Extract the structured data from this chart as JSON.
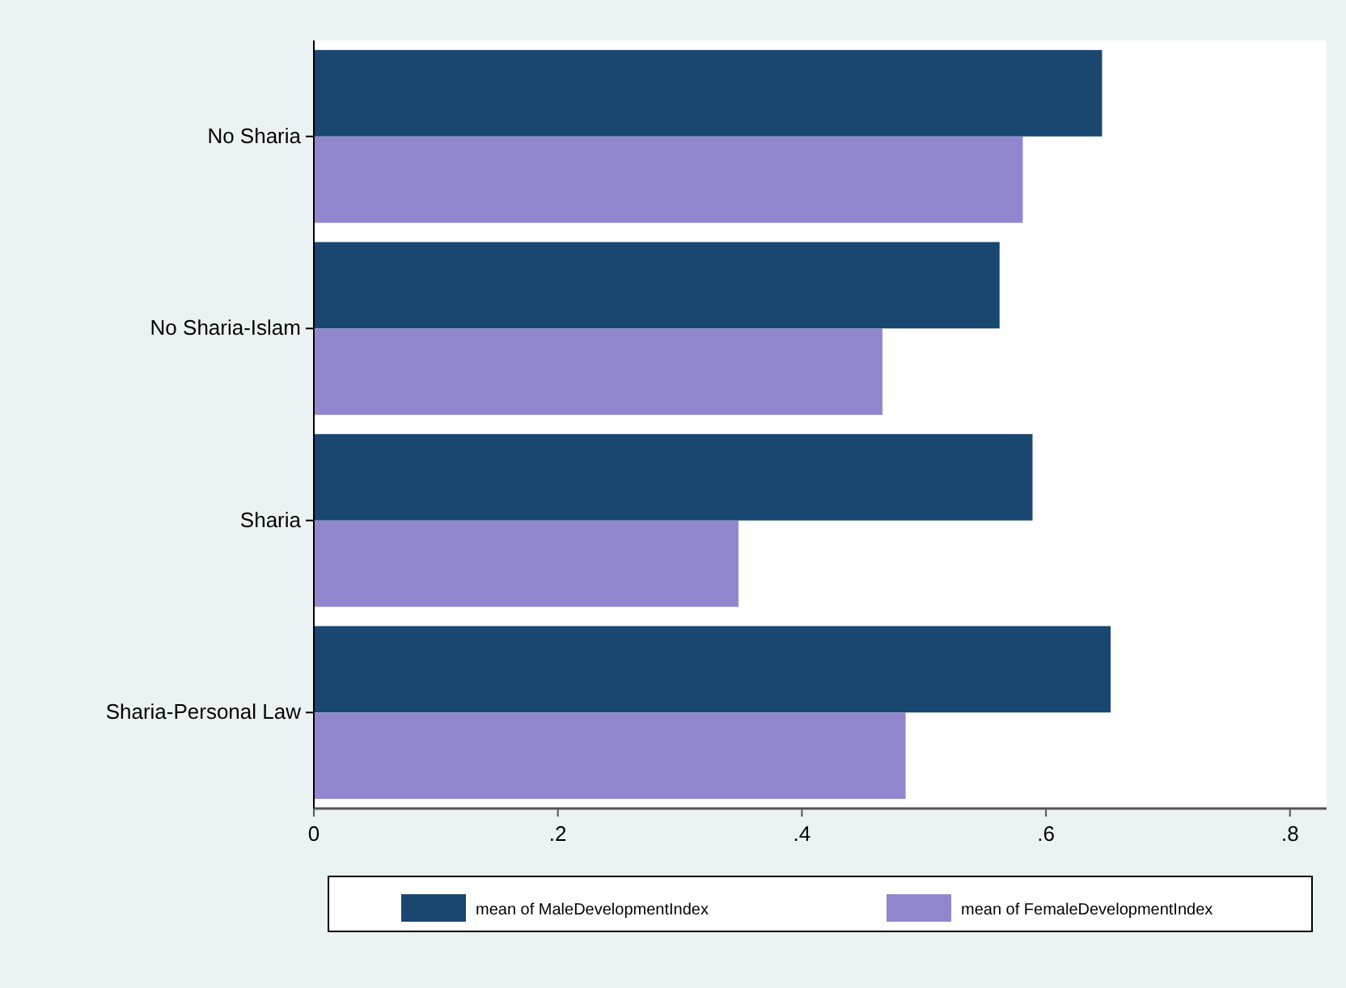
{
  "chart_data": {
    "type": "bar",
    "orientation": "horizontal",
    "categories": [
      "No Sharia",
      "No Sharia-Islam",
      "Sharia",
      "Sharia-Personal Law"
    ],
    "series": [
      {
        "name": "mean of MaleDevelopmentIndex",
        "color": "#1a476f",
        "values": [
          0.646,
          0.562,
          0.589,
          0.653
        ]
      },
      {
        "name": "mean of FemaleDevelopmentIndex",
        "color": "#9087cf",
        "values": [
          0.581,
          0.466,
          0.348,
          0.485
        ]
      }
    ],
    "xlim": [
      0,
      0.83
    ],
    "xticks": [
      {
        "value": 0,
        "label": "0"
      },
      {
        "value": 0.2,
        "label": ".2"
      },
      {
        "value": 0.4,
        "label": ".4"
      },
      {
        "value": 0.6,
        "label": ".6"
      },
      {
        "value": 0.8,
        "label": ".8"
      }
    ],
    "grid": false,
    "legend": "bottom"
  }
}
